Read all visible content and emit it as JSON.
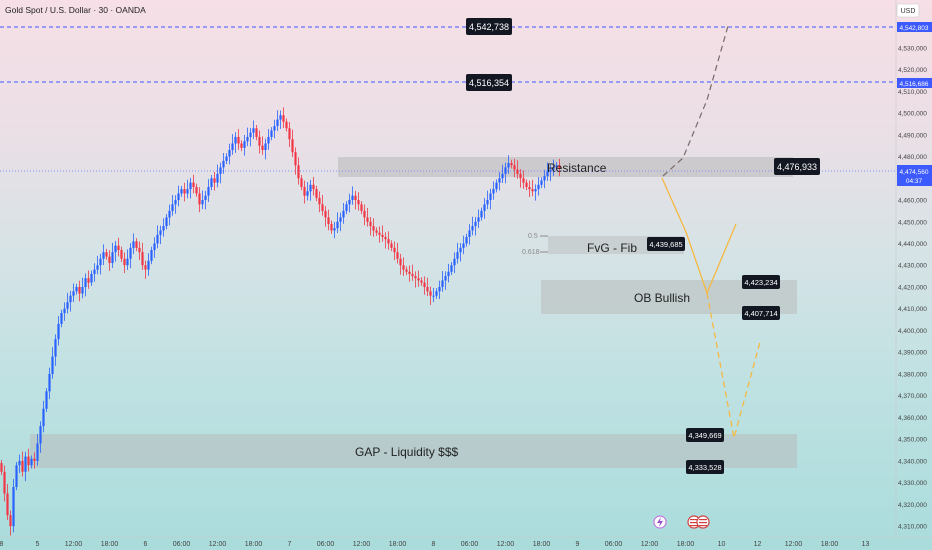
{
  "header": {
    "title": "Gold Spot / U.S. Dollar · 30 · OANDA",
    "currency": "USD"
  },
  "colors": {
    "up": "#2962ff",
    "down": "#f23645",
    "zone_fill": "#b8b8b8",
    "path_up": "#7a6a6a",
    "path_down": "#f5b942",
    "hline": "#3d5afe"
  },
  "chart_data": {
    "type": "candlestick",
    "symbol": "Gold Spot / U.S. Dollar",
    "interval": "30",
    "broker": "OANDA",
    "ylim": [
      4305000,
      4552000
    ],
    "y_ticks": [
      {
        "value": 4310000,
        "label": "4,310,000"
      },
      {
        "value": 4320000,
        "label": "4,320,000"
      },
      {
        "value": 4330000,
        "label": "4,330,000"
      },
      {
        "value": 4340000,
        "label": "4,340,000"
      },
      {
        "value": 4350000,
        "label": "4,350,000"
      },
      {
        "value": 4360000,
        "label": "4,360,000"
      },
      {
        "value": 4370000,
        "label": "4,370,000"
      },
      {
        "value": 4380000,
        "label": "4,380,000"
      },
      {
        "value": 4390000,
        "label": "4,390,000"
      },
      {
        "value": 4400000,
        "label": "4,400,000"
      },
      {
        "value": 4410000,
        "label": "4,410,000"
      },
      {
        "value": 4420000,
        "label": "4,420,000"
      },
      {
        "value": 4430000,
        "label": "4,430,000"
      },
      {
        "value": 4440000,
        "label": "4,440,000"
      },
      {
        "value": 4450000,
        "label": "4,450,000"
      },
      {
        "value": 4460000,
        "label": "4,460,000"
      },
      {
        "value": 4470000,
        "label": "4,470,000"
      },
      {
        "value": 4480000,
        "label": "4,480,000"
      },
      {
        "value": 4490000,
        "label": "4,490,000"
      },
      {
        "value": 4500000,
        "label": "4,500,000"
      },
      {
        "value": 4510000,
        "label": "4,510,000"
      },
      {
        "value": 4520000,
        "label": "4,520,000"
      },
      {
        "value": 4530000,
        "label": "4,530,000"
      },
      {
        "value": 4540000,
        "label": "4,540,000"
      }
    ],
    "x_ticks": [
      {
        "idx": 0,
        "label": "8"
      },
      {
        "idx": 12,
        "label": "5"
      },
      {
        "idx": 24,
        "label": "12:00"
      },
      {
        "idx": 36,
        "label": "18:00"
      },
      {
        "idx": 48,
        "label": "6"
      },
      {
        "idx": 60,
        "label": "06:00"
      },
      {
        "idx": 72,
        "label": "12:00"
      },
      {
        "idx": 84,
        "label": "18:00"
      },
      {
        "idx": 96,
        "label": "7"
      },
      {
        "idx": 108,
        "label": "06:00"
      },
      {
        "idx": 120,
        "label": "12:00"
      },
      {
        "idx": 132,
        "label": "18:00"
      },
      {
        "idx": 144,
        "label": "8"
      },
      {
        "idx": 156,
        "label": "06:00"
      },
      {
        "idx": 168,
        "label": "12:00"
      },
      {
        "idx": 180,
        "label": "18:00"
      },
      {
        "idx": 192,
        "label": "9"
      },
      {
        "idx": 204,
        "label": "06:00"
      },
      {
        "idx": 216,
        "label": "12:00"
      },
      {
        "idx": 228,
        "label": "18:00"
      },
      {
        "idx": 240,
        "label": "10"
      },
      {
        "idx": 252,
        "label": "12"
      },
      {
        "idx": 264,
        "label": "12:00"
      },
      {
        "idx": 276,
        "label": "18:00"
      },
      {
        "idx": 288,
        "label": "13"
      }
    ],
    "closes": [
      4335000,
      4325000,
      4315000,
      4310000,
      4328000,
      4338000,
      4340000,
      4335000,
      4342000,
      4338000,
      4341000,
      4340000,
      4348000,
      4356000,
      4364000,
      4372000,
      4380000,
      4388000,
      4396000,
      4403000,
      4408000,
      4410000,
      4413000,
      4416000,
      4418000,
      4420000,
      4417000,
      4420000,
      4424000,
      4422000,
      4426000,
      4428000,
      4430000,
      4433000,
      4436000,
      4434000,
      4431000,
      4436000,
      4439000,
      4437000,
      4433000,
      4430000,
      4433000,
      4438000,
      4441000,
      4438000,
      4436000,
      4430000,
      4428000,
      4432000,
      4437000,
      4440000,
      4444000,
      4446000,
      4448000,
      4452000,
      4455000,
      4458000,
      4460000,
      4463000,
      4465000,
      4463000,
      4465000,
      4468000,
      4466000,
      4463000,
      4458000,
      4460000,
      4462000,
      4466000,
      4470000,
      4468000,
      4472000,
      4475000,
      4478000,
      4480000,
      4483000,
      4486000,
      4489000,
      4486000,
      4484000,
      4487000,
      4489000,
      4491000,
      4493000,
      4489000,
      4485000,
      4483000,
      4486000,
      4489000,
      4492000,
      4494000,
      4497000,
      4499000,
      4496000,
      4493000,
      4488000,
      4482000,
      4476000,
      4470000,
      4466000,
      4462000,
      4464000,
      4467000,
      4465000,
      4461000,
      4458000,
      4455000,
      4452000,
      4449000,
      4446000,
      4447000,
      4450000,
      4452000,
      4455000,
      4458000,
      4460000,
      4462000,
      4460000,
      4458000,
      4455000,
      4452000,
      4450000,
      4448000,
      4446000,
      4445000,
      4444000,
      4443000,
      4442000,
      4440000,
      4438000,
      4436000,
      4433000,
      4430000,
      4428000,
      4427000,
      4426000,
      4425000,
      4424000,
      4423000,
      4422000,
      4420000,
      4418000,
      4416000,
      4416000,
      4418000,
      4420000,
      4423000,
      4425000,
      4427000,
      4430000,
      4433000,
      4436000,
      4438000,
      4440000,
      4443000,
      4446000,
      4448000,
      4450000,
      4452000,
      4455000,
      4458000,
      4460000,
      4463000,
      4465000,
      4468000,
      4470000,
      4472000,
      4475000,
      4477000,
      4476000,
      4474000,
      4472000,
      4470000,
      4468000,
      4466000,
      4465000,
      4464000,
      4465000,
      4467000,
      4469000,
      4471000,
      4473000,
      4474000,
      4475000,
      4476000,
      4474560
    ]
  },
  "levels": {
    "l1": {
      "label": "4,542,738"
    },
    "l2": {
      "label": "4,516,354"
    },
    "l3": {
      "label": "4,476,933"
    },
    "l4": {
      "label": "4,439,685"
    },
    "l5": {
      "label": "4,423,234"
    },
    "l6": {
      "label": "4,407,714"
    },
    "l7": {
      "label": "4,349,669"
    },
    "l8": {
      "label": "4,333,528"
    }
  },
  "axis_badges": {
    "b1": {
      "label": "4,542,803"
    },
    "b2": {
      "label": "4,516,686"
    },
    "b3": {
      "label": "4,474,560"
    },
    "b3_time": {
      "label": "04:37"
    }
  },
  "zones": {
    "resistance": {
      "label": "Resistance"
    },
    "fvg": {
      "label": "FvG - Fib"
    },
    "ob": {
      "label": "OB Bullish"
    },
    "gap": {
      "label": "GAP - Liquidity $$$"
    }
  },
  "fib": {
    "f05": "0.5",
    "f0618": "0.618"
  }
}
